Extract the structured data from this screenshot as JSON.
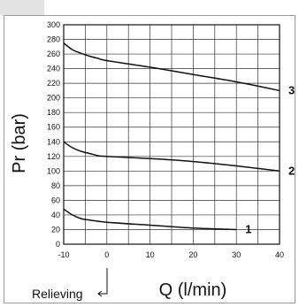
{
  "chart_data": {
    "type": "line",
    "xlabel": "Q (l/min)",
    "ylabel": "Pr (bar)",
    "xlim": [
      -10,
      40
    ],
    "ylim": [
      0,
      300
    ],
    "x_ticks": [
      -10,
      0,
      10,
      20,
      30,
      40
    ],
    "y_ticks": [
      0,
      20,
      40,
      60,
      80,
      100,
      120,
      140,
      160,
      180,
      200,
      220,
      240,
      260,
      280,
      300
    ],
    "x_grid_step": 5,
    "y_grid_step": 20,
    "grid": true,
    "annotation": {
      "text": "Relieving",
      "arrow": "left"
    },
    "series": [
      {
        "name": "1",
        "x": [
          -10,
          -8,
          -6,
          -4,
          0,
          10,
          20,
          30
        ],
        "y": [
          48,
          40,
          35,
          33,
          30,
          26,
          22,
          20
        ]
      },
      {
        "name": "2",
        "x": [
          -10,
          -8,
          -6,
          -4,
          -2,
          0,
          10,
          20,
          30,
          40
        ],
        "y": [
          140,
          132,
          127,
          124,
          121,
          120,
          117,
          113,
          107,
          100
        ]
      },
      {
        "name": "3",
        "x": [
          -10,
          -8,
          -6,
          -4,
          -2,
          0,
          10,
          20,
          30,
          40
        ],
        "y": [
          275,
          266,
          261,
          257,
          254,
          251,
          242,
          232,
          222,
          210
        ]
      }
    ]
  }
}
